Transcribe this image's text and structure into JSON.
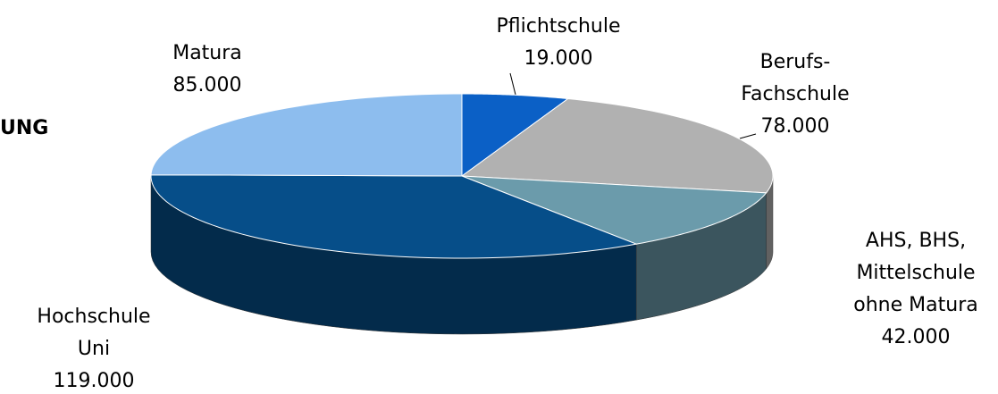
{
  "chart_data": {
    "type": "pie3d",
    "annotation": "UNG",
    "categories": [
      "Pflichtschule",
      "Berufs-\nFachschule",
      "AHS, BHS,\nMittelschule\nohne Matura",
      "Hochschule\nUni",
      "Matura"
    ],
    "values": [
      19000,
      78000,
      42000,
      119000,
      85000
    ],
    "value_labels": [
      "19.000",
      "78.000",
      "42.000",
      "119.000",
      "85.000"
    ],
    "colors": [
      "#0b60c6",
      "#b1b1b1",
      "#6b9bab",
      "#064e89",
      "#8dbdee"
    ]
  }
}
